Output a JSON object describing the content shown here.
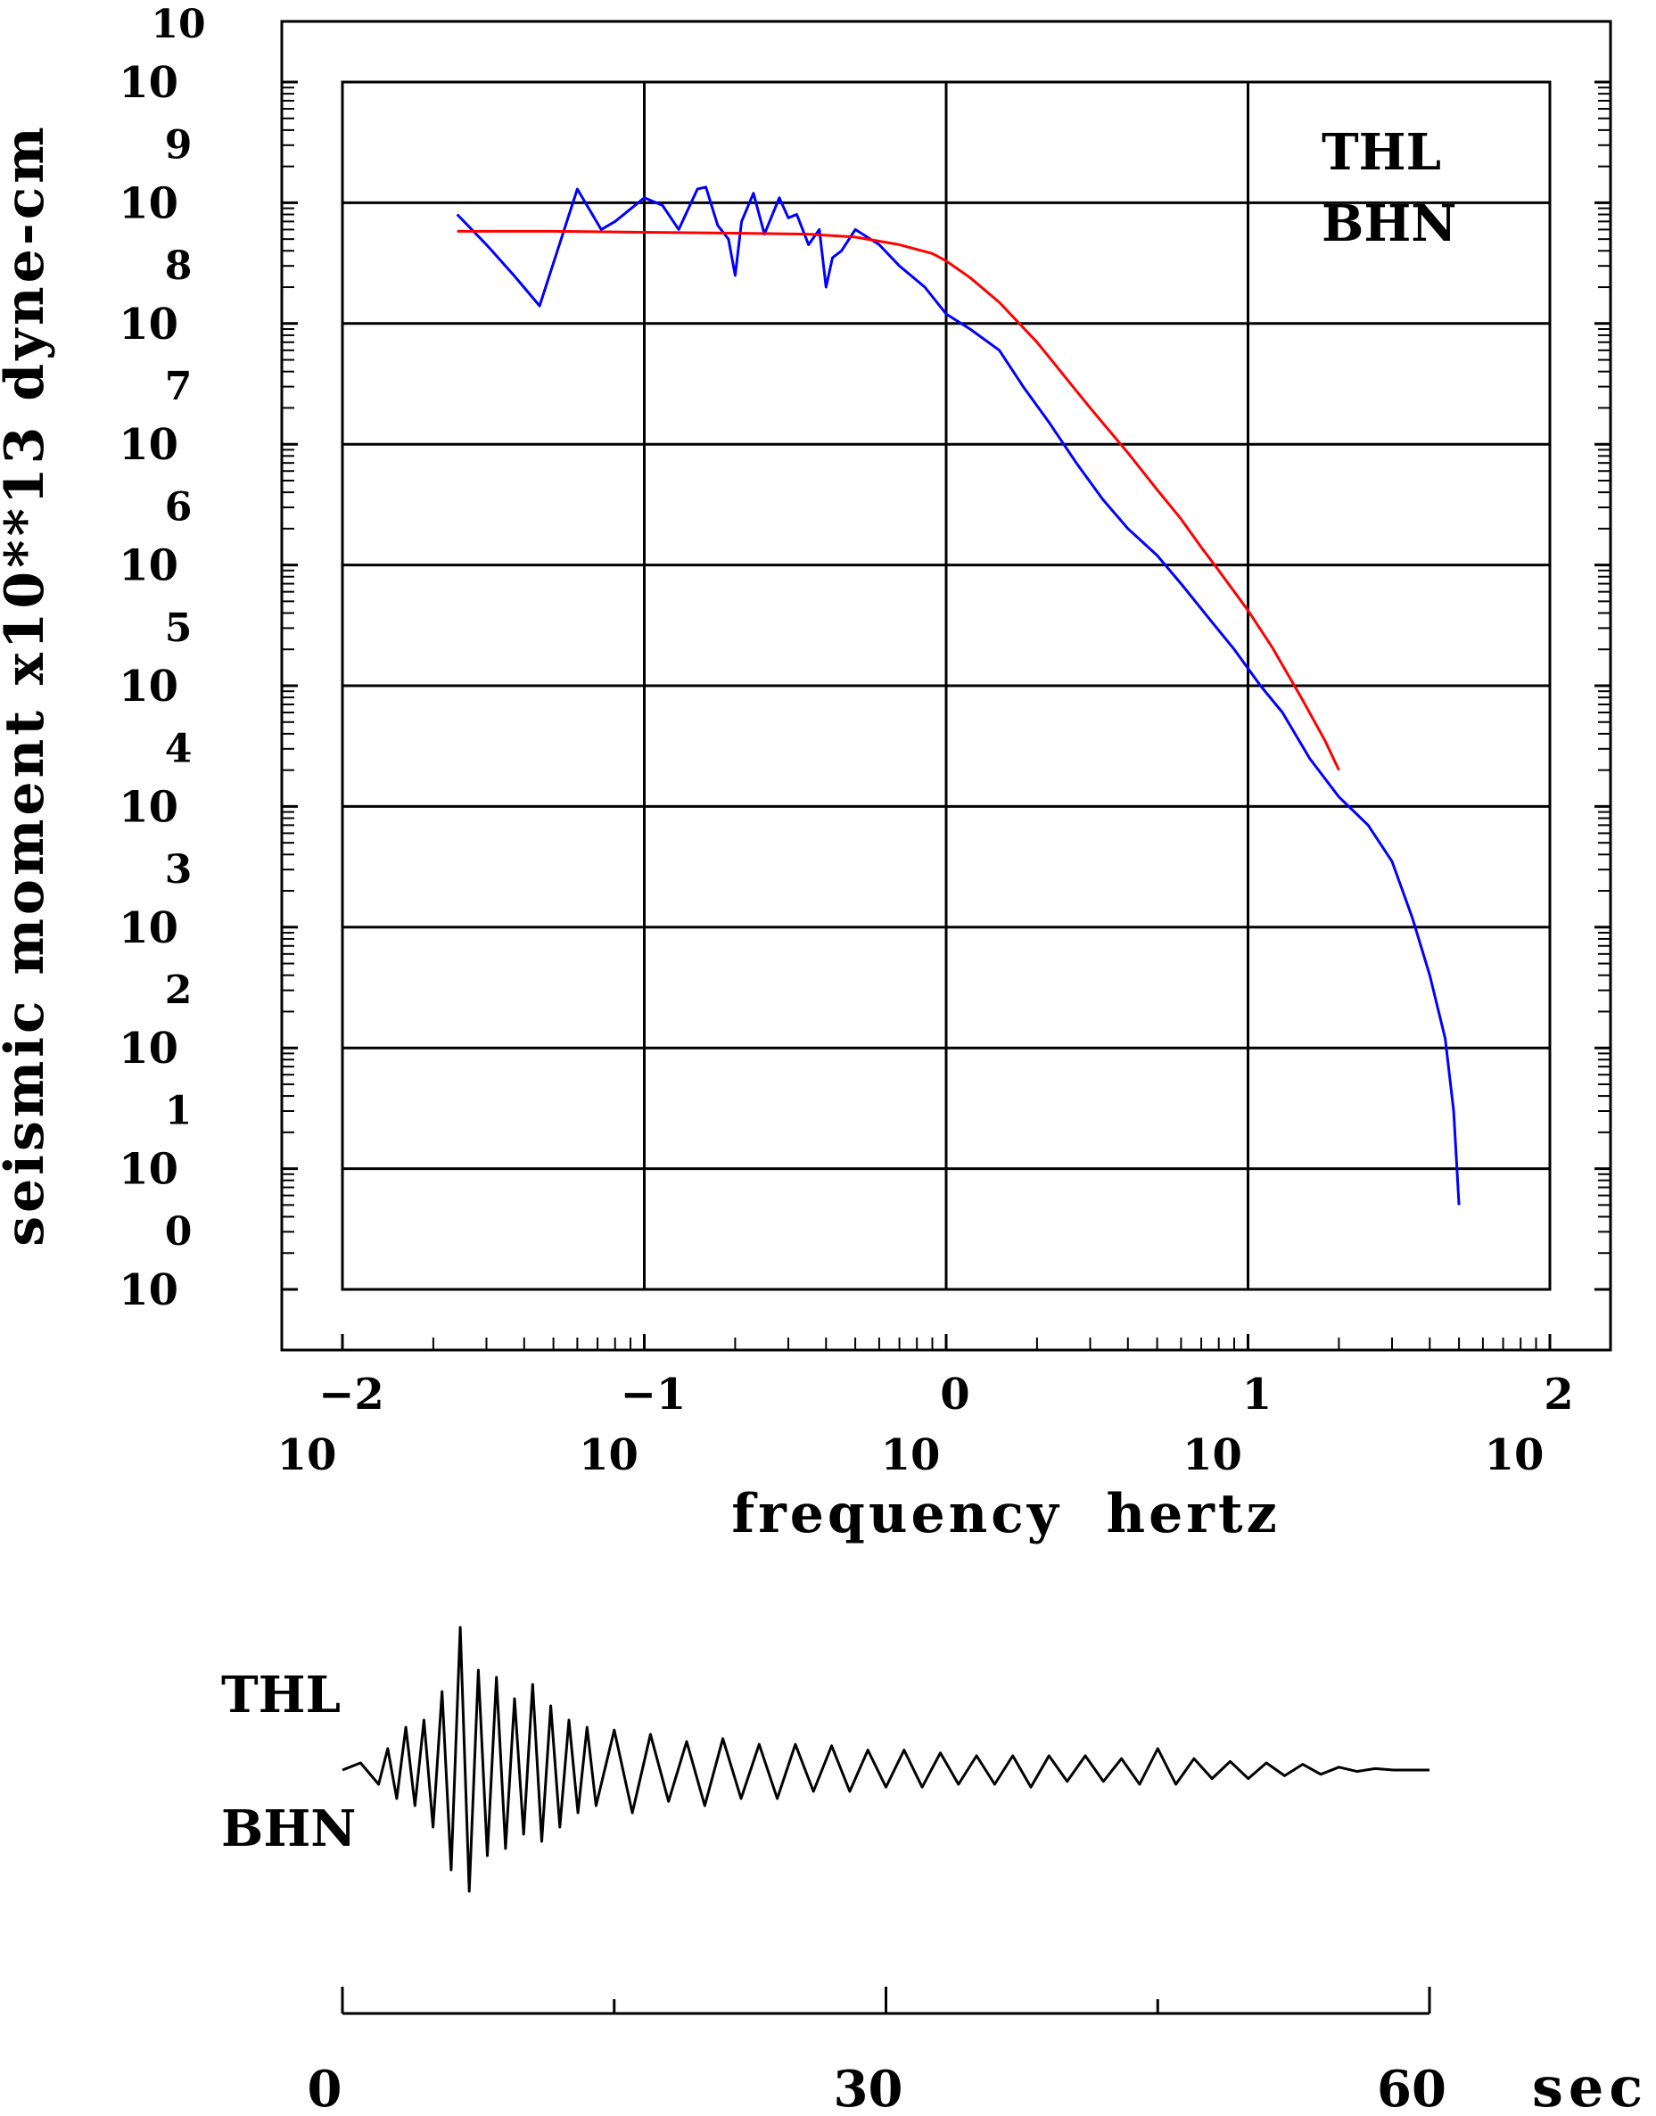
{
  "chart_data": [
    {
      "type": "line",
      "title": "",
      "xlabel": "frequency  hertz",
      "ylabel": "seismic moment x10**13 dyne-cm",
      "x_scale": "log",
      "y_scale": "log",
      "xlim": [
        0.01,
        100
      ],
      "ylim": [
        1,
        10000000000
      ],
      "grid": true,
      "x_ticks": [
        {
          "base": "10",
          "exp": "−2"
        },
        {
          "base": "10",
          "exp": "−1"
        },
        {
          "base": "10",
          "exp": "0"
        },
        {
          "base": "10",
          "exp": "1"
        },
        {
          "base": "10",
          "exp": "2"
        }
      ],
      "y_ticks": [
        {
          "base": "10",
          "exp": "0"
        },
        {
          "base": "10",
          "exp": "1"
        },
        {
          "base": "10",
          "exp": "2"
        },
        {
          "base": "10",
          "exp": "3"
        },
        {
          "base": "10",
          "exp": "4"
        },
        {
          "base": "10",
          "exp": "5"
        },
        {
          "base": "10",
          "exp": "6"
        },
        {
          "base": "10",
          "exp": "7"
        },
        {
          "base": "10",
          "exp": "8"
        },
        {
          "base": "10",
          "exp": "9"
        },
        {
          "base": "10",
          "exp": "10"
        }
      ],
      "annotations": [
        "THL",
        "BHN"
      ],
      "series": [
        {
          "color": "#0000ff",
          "x": [
            0.024,
            0.03,
            0.037,
            0.045,
            0.06,
            0.072,
            0.08,
            0.1,
            0.115,
            0.13,
            0.15,
            0.16,
            0.175,
            0.19,
            0.2,
            0.21,
            0.23,
            0.25,
            0.28,
            0.3,
            0.32,
            0.35,
            0.38,
            0.4,
            0.42,
            0.45,
            0.5,
            0.6,
            0.7,
            0.85,
            1.0,
            1.2,
            1.5,
            1.8,
            2.2,
            2.7,
            3.3,
            4.0,
            5.0,
            6.0,
            7.5,
            9.0,
            11.0,
            13.0,
            16.0,
            20.0,
            25.0,
            30.0,
            35.0,
            40.0,
            45.0,
            48.0,
            50.0
          ],
          "y": [
            800000000,
            450000000,
            250000000,
            140000000,
            1300000000,
            600000000,
            700000000,
            1100000000,
            950000000,
            600000000,
            1300000000,
            1350000000,
            650000000,
            500000000,
            250000000,
            700000000,
            1200000000,
            550000000,
            1100000000,
            750000000,
            800000000,
            450000000,
            600000000,
            200000000,
            350000000,
            400000000,
            600000000,
            450000000,
            300000000,
            200000000,
            120000000,
            90000000,
            60000000,
            30000000,
            15000000,
            7000000,
            3500000,
            2000000,
            1200000,
            700000,
            350000,
            200000,
            100000,
            60000,
            25000,
            12000,
            7000,
            3500,
            1200,
            400,
            120,
            30,
            5
          ]
        },
        {
          "color": "#ff0000",
          "x": [
            0.024,
            0.05,
            0.1,
            0.2,
            0.35,
            0.5,
            0.7,
            0.9,
            1.0,
            1.2,
            1.5,
            2.0,
            3.0,
            4.0,
            5.0,
            6.0,
            7.0,
            8.0,
            10.0,
            12.0,
            15.0,
            18.0,
            20.0
          ],
          "y": [
            580000000,
            580000000,
            570000000,
            560000000,
            550000000,
            520000000,
            450000000,
            380000000,
            330000000,
            240000000,
            150000000,
            70000000,
            20000000,
            8500000,
            4200000,
            2400000,
            1400000,
            900000,
            420000,
            210000,
            80000,
            35000,
            20000
          ]
        }
      ]
    },
    {
      "type": "line",
      "title": "",
      "xlabel": "sec",
      "xlim": [
        0,
        60
      ],
      "x_ticks": [
        "0",
        "30",
        "60"
      ],
      "annotations": [
        "THL",
        "BHN"
      ],
      "series": [
        {
          "color": "#000000",
          "x": [
            0,
            1,
            2,
            2.5,
            3,
            3.5,
            4,
            4.5,
            5,
            5.5,
            6,
            6.5,
            7,
            7.5,
            8,
            8.5,
            9,
            9.5,
            10,
            10.5,
            11,
            11.5,
            12,
            12.5,
            13,
            13.5,
            14,
            15,
            16,
            17,
            18,
            19,
            20,
            21,
            22,
            23,
            24,
            25,
            26,
            27,
            28,
            29,
            30,
            31,
            32,
            33,
            34,
            35,
            36,
            37,
            38,
            39,
            40,
            41,
            42,
            43,
            44,
            45,
            46,
            47,
            48,
            49,
            50,
            51,
            52,
            53,
            54,
            55,
            56,
            57,
            58,
            59,
            60
          ],
          "y": [
            0.0,
            0.05,
            -0.1,
            0.15,
            -0.2,
            0.3,
            -0.25,
            0.35,
            -0.4,
            0.55,
            -0.7,
            1.0,
            -0.85,
            0.7,
            -0.6,
            0.65,
            -0.55,
            0.5,
            -0.45,
            0.6,
            -0.5,
            0.45,
            -0.4,
            0.35,
            -0.3,
            0.3,
            -0.25,
            0.28,
            -0.3,
            0.25,
            -0.22,
            0.2,
            -0.25,
            0.22,
            -0.2,
            0.18,
            -0.2,
            0.18,
            -0.15,
            0.17,
            -0.15,
            0.14,
            -0.12,
            0.14,
            -0.12,
            0.12,
            -0.1,
            0.1,
            -0.1,
            0.1,
            -0.12,
            0.1,
            -0.08,
            0.1,
            -0.08,
            0.08,
            -0.1,
            0.15,
            -0.1,
            0.08,
            -0.06,
            0.06,
            -0.06,
            0.05,
            -0.04,
            0.04,
            -0.03,
            0.02,
            -0.01,
            0.01,
            0.0,
            0.0,
            0.0
          ]
        }
      ]
    }
  ]
}
